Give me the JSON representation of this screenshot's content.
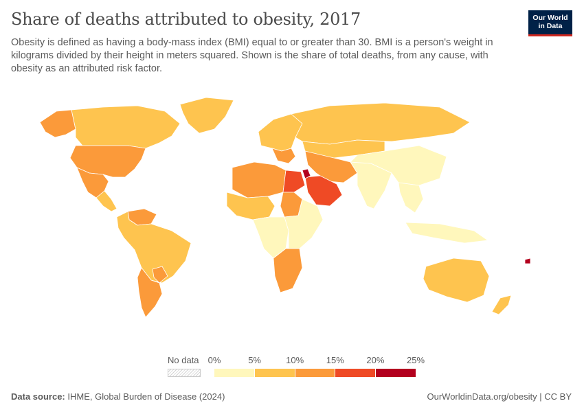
{
  "header": {
    "title": "Share of deaths attributed to obesity, 2017",
    "subtitle": "Obesity is defined as having a body-mass index (BMI) equal to or greater than 30. BMI is a person's weight in kilograms divided by their height in meters squared. Shown is the share of total deaths, from any cause, with obesity as an attributed risk factor."
  },
  "logo": {
    "line1": "Our World",
    "line2": "in Data"
  },
  "legend": {
    "no_data_label": "No data",
    "ticks": [
      "0%",
      "5%",
      "10%",
      "15%",
      "20%",
      "25%"
    ],
    "colors": [
      "#fff7bc",
      "#fec44f",
      "#fb9a3a",
      "#ef4a25",
      "#b3001e"
    ]
  },
  "map_data": {
    "unit": "percent of total deaths",
    "bins": [
      [
        0,
        5
      ],
      [
        5,
        10
      ],
      [
        10,
        15
      ],
      [
        15,
        20
      ],
      [
        20,
        25
      ]
    ],
    "regions": [
      {
        "name": "North America - Canada/Alaska",
        "bin": 1
      },
      {
        "name": "Alaska",
        "bin": 2
      },
      {
        "name": "United States",
        "bin": 2
      },
      {
        "name": "Mexico",
        "bin": 2
      },
      {
        "name": "Central America",
        "bin": 1
      },
      {
        "name": "Greenland",
        "bin": 1
      },
      {
        "name": "Venezuela",
        "bin": 2
      },
      {
        "name": "South America",
        "bin": 1
      },
      {
        "name": "Argentina/Chile",
        "bin": 2
      },
      {
        "name": "Paraguay",
        "bin": 2
      },
      {
        "name": "Europe",
        "bin": 1
      },
      {
        "name": "Balkans",
        "bin": 2
      },
      {
        "name": "Russia",
        "bin": 1
      },
      {
        "name": "North Africa",
        "bin": 2
      },
      {
        "name": "Egypt",
        "bin": 3
      },
      {
        "name": "Arabian Peninsula",
        "bin": 3
      },
      {
        "name": "Jordan",
        "bin": 4
      },
      {
        "name": "Iran/Central Asia",
        "bin": 2
      },
      {
        "name": "West Africa",
        "bin": 1
      },
      {
        "name": "Sudan",
        "bin": 2
      },
      {
        "name": "Central Africa",
        "bin": 0
      },
      {
        "name": "East Africa",
        "bin": 0
      },
      {
        "name": "South Africa",
        "bin": 2
      },
      {
        "name": "India",
        "bin": 0
      },
      {
        "name": "China",
        "bin": 0
      },
      {
        "name": "Mongolia/Kazakhstan",
        "bin": 1
      },
      {
        "name": "Southeast Asia",
        "bin": 0
      },
      {
        "name": "Indonesia",
        "bin": 0
      },
      {
        "name": "Australia",
        "bin": 1
      },
      {
        "name": "New Zealand",
        "bin": 1
      },
      {
        "name": "Fiji",
        "bin": 4
      }
    ]
  },
  "footer": {
    "source_label": "Data source:",
    "source_text": "IHME, Global Burden of Disease (2024)",
    "right_text": "OurWorldinData.org/obesity | CC BY"
  }
}
